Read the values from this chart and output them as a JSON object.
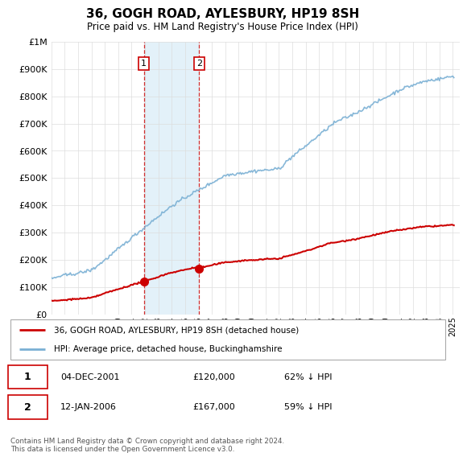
{
  "title": "36, GOGH ROAD, AYLESBURY, HP19 8SH",
  "subtitle": "Price paid vs. HM Land Registry's House Price Index (HPI)",
  "ylim": [
    0,
    1000000
  ],
  "yticks": [
    0,
    100000,
    200000,
    300000,
    400000,
    500000,
    600000,
    700000,
    800000,
    900000,
    1000000
  ],
  "hpi_color": "#7ab0d4",
  "property_color": "#cc0000",
  "sale1_year": 2001.92,
  "sale1_price": 120000,
  "sale2_year": 2006.04,
  "sale2_price": 167000,
  "legend_property": "36, GOGH ROAD, AYLESBURY, HP19 8SH (detached house)",
  "legend_hpi": "HPI: Average price, detached house, Buckinghamshire",
  "table_rows": [
    {
      "num": "1",
      "date": "04-DEC-2001",
      "price": "£120,000",
      "hpi": "62% ↓ HPI"
    },
    {
      "num": "2",
      "date": "12-JAN-2006",
      "price": "£167,000",
      "hpi": "59% ↓ HPI"
    }
  ],
  "footnote": "Contains HM Land Registry data © Crown copyright and database right 2024.\nThis data is licensed under the Open Government Licence v3.0.",
  "background_color": "#ffffff",
  "grid_color": "#dddddd",
  "shade_color": "#dceef8",
  "shade_x1": 2001.92,
  "shade_x2": 2006.04,
  "xlim_left": 1995.0,
  "xlim_right": 2025.5
}
